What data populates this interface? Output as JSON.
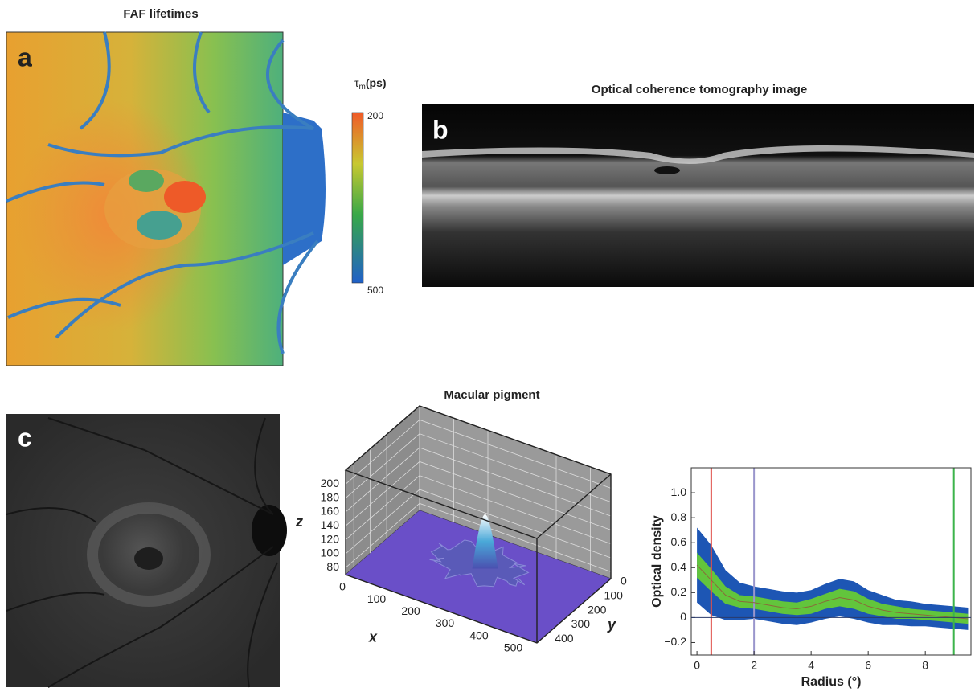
{
  "panel_a": {
    "title": "FAF lifetimes",
    "label": "a",
    "colorbar": {
      "symbol": "τ",
      "subscript": "m",
      "unit": "(ps)",
      "ticks": [
        200,
        500
      ]
    }
  },
  "panel_b": {
    "title": "Optical coherence tomography image",
    "label": "b"
  },
  "panel_c": {
    "label": "c"
  },
  "chart_data": [
    {
      "type": "surface3d",
      "title": "Macular pigment",
      "xlabel": "x",
      "ylabel": "y",
      "zlabel": "z",
      "xlim": [
        0,
        560
      ],
      "ylim": [
        0,
        450
      ],
      "zlim": [
        70,
        220
      ],
      "xticks": [
        0,
        100,
        200,
        300,
        400,
        500
      ],
      "yticks": [
        0,
        100,
        200,
        300,
        400
      ],
      "zticks": [
        80,
        100,
        120,
        140,
        160,
        180,
        200
      ],
      "color": "#6a4fc8",
      "grid": true
    },
    {
      "type": "line",
      "xlabel": "Radius (°)",
      "ylabel": "Optical density",
      "x": [
        0,
        0.5,
        1,
        1.5,
        2,
        2.5,
        3,
        3.5,
        4,
        4.5,
        5,
        5.5,
        6,
        6.5,
        7,
        7.5,
        8,
        8.5,
        9,
        9.5
      ],
      "series": [
        {
          "color": "#8a6a3a",
          "values": [
            0.42,
            0.3,
            0.18,
            0.13,
            0.12,
            0.1,
            0.08,
            0.07,
            0.09,
            0.13,
            0.16,
            0.14,
            0.09,
            0.06,
            0.04,
            0.03,
            0.02,
            0.01,
            0,
            -0.01
          ]
        }
      ],
      "bands": [
        {
          "color": "#1d56b4",
          "half_width": [
            0.3,
            0.28,
            0.2,
            0.15,
            0.13,
            0.13,
            0.13,
            0.13,
            0.13,
            0.14,
            0.15,
            0.15,
            0.13,
            0.12,
            0.1,
            0.1,
            0.09,
            0.09,
            0.09,
            0.09
          ]
        },
        {
          "color": "#62c53c",
          "half_width": [
            0.1,
            0.09,
            0.07,
            0.05,
            0.05,
            0.05,
            0.05,
            0.05,
            0.06,
            0.06,
            0.07,
            0.07,
            0.06,
            0.05,
            0.05,
            0.04,
            0.04,
            0.04,
            0.04,
            0.04
          ]
        }
      ],
      "vlines": [
        {
          "x": 0.5,
          "color": "#e0504a"
        },
        {
          "x": 2,
          "color": "#9a96cc"
        },
        {
          "x": 9,
          "color": "#3cb44b"
        }
      ],
      "xlim": [
        -0.2,
        9.6
      ],
      "ylim": [
        -0.3,
        1.2
      ],
      "xticks": [
        0,
        2,
        4,
        6,
        8
      ],
      "yticks": [
        {
          "value": -0.2,
          "label": "−0.2"
        },
        0,
        0.2,
        0.4,
        0.6,
        0.8,
        {
          "value": 1,
          "label": "1.0"
        }
      ]
    }
  ]
}
